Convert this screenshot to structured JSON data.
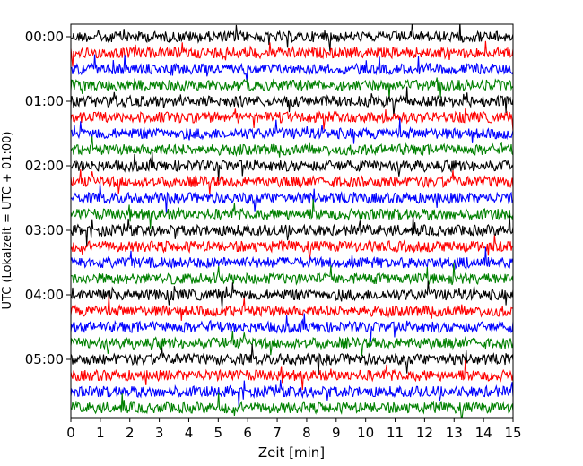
{
  "chart_data": {
    "type": "line",
    "title": "",
    "xlabel": "Zeit  [min]",
    "ylabel": "UTC (Lokalzeit = UTC + 01:00)",
    "xlim": [
      0,
      15
    ],
    "x_ticks": [
      "0",
      "1",
      "2",
      "3",
      "4",
      "5",
      "6",
      "7",
      "8",
      "9",
      "10",
      "11",
      "12",
      "13",
      "14",
      "15"
    ],
    "y_ticks": [
      "00:00",
      "01:00",
      "02:00",
      "03:00",
      "04:00",
      "05:00"
    ],
    "grid": false,
    "legend": "none",
    "trace_colors": [
      "#000000",
      "#ff0000",
      "#0000ff",
      "#008000"
    ],
    "trace_offsets": [
      "00:00",
      "00:15",
      "00:30",
      "00:45",
      "01:00",
      "01:15",
      "01:30",
      "01:45",
      "02:00",
      "02:15",
      "02:30",
      "02:45",
      "03:00",
      "03:15",
      "03:30",
      "03:45",
      "04:00",
      "04:15",
      "04:30",
      "04:45",
      "05:00",
      "05:15",
      "05:30",
      "05:45"
    ],
    "trace_duration_min": 15
  }
}
